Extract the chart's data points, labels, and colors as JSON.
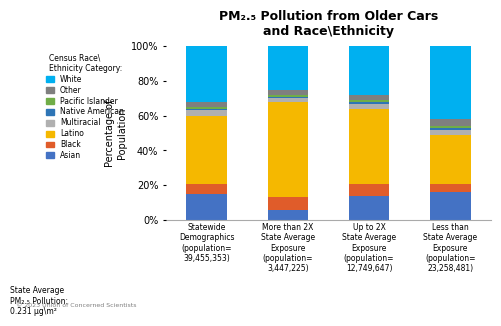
{
  "title_line1": "PM₂.₅ Pollution from Older Cars",
  "title_line2": "and Race\\Ethnicity",
  "categories": [
    "Statewide\nDemographics\n(population=\n39,455,353)",
    "More than 2X\nState Average\nExposure\n(population=\n3,447,225)",
    "Up to 2X\nState Average\nExposure\n(population=\n12,749,647)",
    "Less than\nState Average\nExposure\n(population=\n23,258,481)"
  ],
  "legend_title": "Census Race\\\nEthnicity Category:",
  "legend_entries": [
    "Asian",
    "Black",
    "Latino",
    "Multiracial",
    "Native American",
    "Pacific Islander",
    "Other",
    "White"
  ],
  "colors": [
    "#4472c4",
    "#e05c2a",
    "#f5b800",
    "#b0b0b0",
    "#2e75b6",
    "#70ad47",
    "#7f7f7f",
    "#00b0f0"
  ],
  "data": {
    "Asian": [
      15,
      6,
      14,
      16
    ],
    "Black": [
      6,
      7,
      7,
      5
    ],
    "Latino": [
      39,
      55,
      43,
      28
    ],
    "Multiracial": [
      3,
      2,
      3,
      3
    ],
    "Native American": [
      1,
      1,
      1,
      1
    ],
    "Pacific Islander": [
      1,
      1,
      1,
      1
    ],
    "Other": [
      3,
      3,
      3,
      4
    ],
    "White": [
      32,
      25,
      28,
      42
    ]
  },
  "ylabel": "Percentage of\nPopulation",
  "yticks": [
    0,
    20,
    40,
    60,
    80,
    100
  ],
  "footnote": "© 2023 Union of Concerned Scientists",
  "state_avg_label": "State Average\nPM₂.₅ Pollution:\n0.231 μg\\m²",
  "background_color": "#ffffff"
}
